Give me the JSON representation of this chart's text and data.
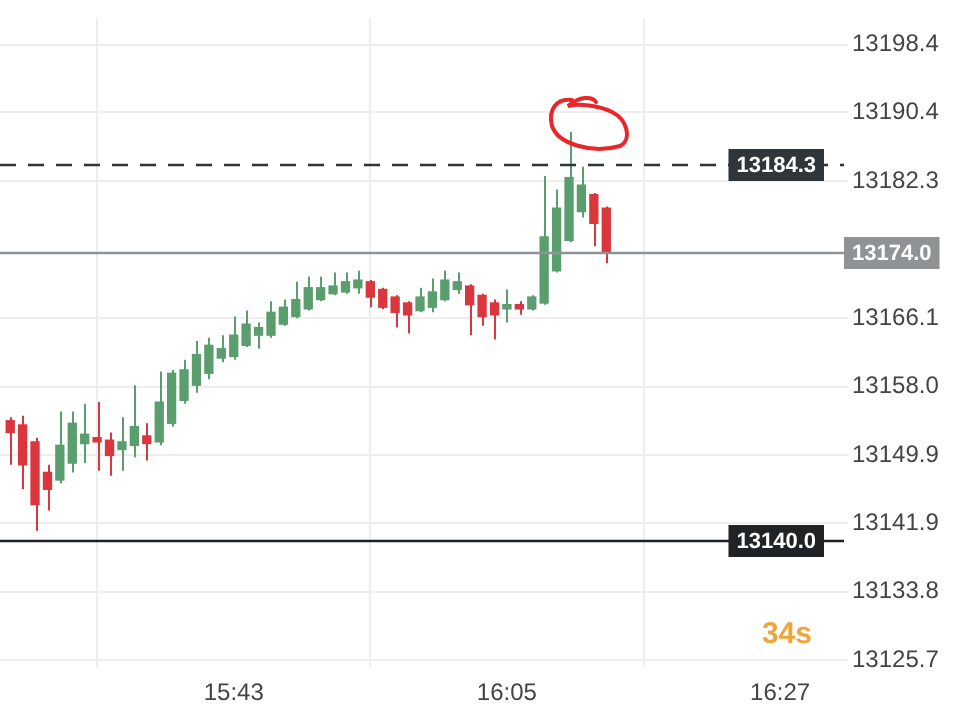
{
  "chart_data": {
    "type": "candlestick",
    "x": [
      15.4167,
      15.4333,
      15.45,
      15.4667,
      15.4833,
      15.5,
      15.5167,
      15.5333,
      15.55,
      15.5667,
      15.5833,
      15.6,
      15.6167,
      15.6333,
      15.65,
      15.6667,
      15.6833,
      15.7,
      15.7167,
      15.7333,
      15.75,
      15.7667,
      15.7833,
      15.8,
      15.8167,
      15.8333,
      15.85,
      15.8667,
      15.8833,
      15.9,
      15.9167,
      15.9333,
      15.95,
      15.9667,
      15.9833,
      16.0,
      16.0167,
      16.0333,
      16.05,
      16.0667,
      16.0833,
      16.1,
      16.1167,
      16.1333,
      16.15,
      16.1667,
      16.1833,
      16.2,
      16.2167
    ],
    "ohlc": [
      [
        13154.0,
        13154.4,
        13148.8,
        13152.6
      ],
      [
        13153.5,
        13154.6,
        13145.9,
        13148.8
      ],
      [
        13151.5,
        13152.0,
        13141.0,
        13144.1
      ],
      [
        13147.9,
        13148.8,
        13143.4,
        13145.9
      ],
      [
        13147.0,
        13155.1,
        13146.6,
        13151.1
      ],
      [
        13149.0,
        13155.1,
        13147.9,
        13153.7
      ],
      [
        13151.3,
        13156.0,
        13149.0,
        13152.4
      ],
      [
        13152.0,
        13156.2,
        13148.1,
        13151.5
      ],
      [
        13151.7,
        13152.6,
        13147.5,
        13149.9
      ],
      [
        13150.6,
        13154.4,
        13148.1,
        13151.5
      ],
      [
        13151.1,
        13158.2,
        13149.7,
        13153.3
      ],
      [
        13152.2,
        13153.7,
        13149.3,
        13151.3
      ],
      [
        13151.5,
        13159.8,
        13151.1,
        13156.2
      ],
      [
        13153.7,
        13160.0,
        13153.3,
        13159.6
      ],
      [
        13156.4,
        13161.2,
        13156.0,
        13160.0
      ],
      [
        13158.2,
        13163.4,
        13157.3,
        13161.8
      ],
      [
        13159.6,
        13163.8,
        13158.9,
        13162.9
      ],
      [
        13161.4,
        13164.1,
        13160.9,
        13162.5
      ],
      [
        13161.6,
        13166.3,
        13161.2,
        13164.1
      ],
      [
        13162.9,
        13167.0,
        13162.7,
        13165.4
      ],
      [
        13164.1,
        13165.6,
        13162.5,
        13165.0
      ],
      [
        13164.1,
        13168.1,
        13163.8,
        13166.8
      ],
      [
        13165.4,
        13168.3,
        13165.2,
        13167.4
      ],
      [
        13166.3,
        13170.4,
        13166.1,
        13168.3
      ],
      [
        13167.2,
        13171.0,
        13167.0,
        13169.7
      ],
      [
        13168.3,
        13171.0,
        13168.1,
        13169.7
      ],
      [
        13169.0,
        13171.5,
        13168.8,
        13169.9
      ],
      [
        13169.2,
        13171.5,
        13169.0,
        13170.4
      ],
      [
        13169.7,
        13171.7,
        13169.0,
        13170.6
      ],
      [
        13170.4,
        13170.6,
        13167.4,
        13168.6
      ],
      [
        13169.5,
        13169.7,
        13167.2,
        13167.4
      ],
      [
        13168.6,
        13168.8,
        13165.0,
        13166.8
      ],
      [
        13167.9,
        13168.1,
        13164.3,
        13166.5
      ],
      [
        13167.0,
        13169.7,
        13166.8,
        13168.6
      ],
      [
        13167.4,
        13170.8,
        13166.8,
        13169.2
      ],
      [
        13168.3,
        13171.7,
        13168.1,
        13170.6
      ],
      [
        13169.5,
        13171.5,
        13169.0,
        13170.4
      ],
      [
        13169.9,
        13170.1,
        13164.1,
        13167.7
      ],
      [
        13168.8,
        13169.0,
        13165.2,
        13166.3
      ],
      [
        13167.9,
        13168.3,
        13163.6,
        13166.5
      ],
      [
        13167.2,
        13169.5,
        13165.6,
        13167.7
      ],
      [
        13167.7,
        13168.1,
        13166.5,
        13167.2
      ],
      [
        13167.2,
        13168.8,
        13167.0,
        13168.6
      ],
      [
        13167.9,
        13182.9,
        13167.7,
        13175.7
      ],
      [
        13171.7,
        13181.3,
        13171.5,
        13179.1
      ],
      [
        13175.3,
        13188.1,
        13175.1,
        13182.7
      ],
      [
        13178.7,
        13184.0,
        13178.0,
        13181.8
      ],
      [
        13180.7,
        13180.9,
        13174.6,
        13177.3
      ],
      [
        13179.1,
        13179.3,
        13172.6,
        13174.0
      ]
    ],
    "colors": [
      "#d9363e",
      "#d9363e",
      "#d9363e",
      "#d9363e",
      "#5b9e6e",
      "#5b9e6e",
      "#5b9e6e",
      "#d9363e",
      "#d9363e",
      "#5b9e6e",
      "#5b9e6e",
      "#d9363e",
      "#5b9e6e",
      "#5b9e6e",
      "#5b9e6e",
      "#5b9e6e",
      "#5b9e6e",
      "#5b9e6e",
      "#5b9e6e",
      "#5b9e6e",
      "#5b9e6e",
      "#5b9e6e",
      "#5b9e6e",
      "#5b9e6e",
      "#5b9e6e",
      "#5b9e6e",
      "#5b9e6e",
      "#5b9e6e",
      "#5b9e6e",
      "#d9363e",
      "#d9363e",
      "#d9363e",
      "#d9363e",
      "#5b9e6e",
      "#5b9e6e",
      "#5b9e6e",
      "#5b9e6e",
      "#d9363e",
      "#d9363e",
      "#d9363e",
      "#5b9e6e",
      "#d9363e",
      "#5b9e6e",
      "#5b9e6e",
      "#5b9e6e",
      "#5b9e6e",
      "#5b9e6e",
      "#d9363e",
      "#d9363e"
    ],
    "xlim": [
      15.403,
      16.525
    ],
    "xticks": [
      {
        "value": 15.7167,
        "label": "15:43"
      },
      {
        "value": 16.0833,
        "label": "16:05"
      },
      {
        "value": 16.45,
        "label": "16:27"
      }
    ],
    "ylim": [
      13124.9,
      13201.5
    ],
    "yticks": [
      13125.7,
      13133.8,
      13141.9,
      13149.9,
      {
        "value": 13158,
        "label": "13158.0"
      },
      13166.1,
      13182.3,
      13190.4,
      13198.4
    ],
    "ref_lines": [
      {
        "axis": "y",
        "value": 13184.3,
        "label": "13184.3",
        "color": "#30353a",
        "line_style": "dashed"
      },
      {
        "axis": "y",
        "value": 13174.0,
        "label": "13174.0",
        "color": "#8f9396",
        "line_style": "solid"
      },
      {
        "axis": "y",
        "value": 13140.0,
        "label": "13140.0",
        "color": "#1f2326",
        "line_style": "solid"
      }
    ],
    "annotations": [
      "34s"
    ],
    "grid": true,
    "legend": false
  }
}
